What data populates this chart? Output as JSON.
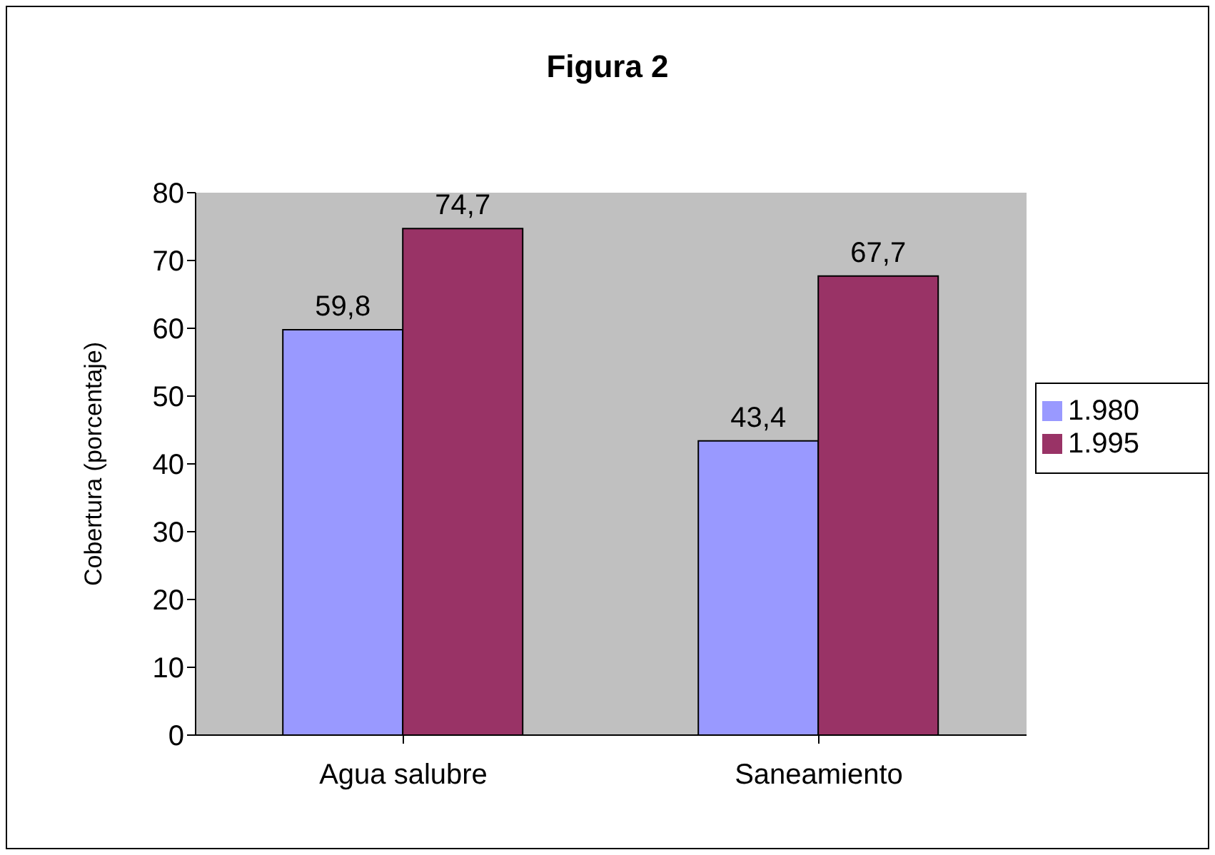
{
  "chart_data": {
    "type": "bar",
    "title": "Figura 2",
    "ylabel": "Cobertura (porcentaje)",
    "categories": [
      "Agua salubre",
      "Saneamiento"
    ],
    "series": [
      {
        "name": "1.980",
        "color": "#9999ff",
        "values": [
          59.8,
          43.4
        ],
        "value_labels": [
          "59,8",
          "43,4"
        ]
      },
      {
        "name": "1.995",
        "color": "#993366",
        "values": [
          74.7,
          67.7
        ],
        "value_labels": [
          "74,7",
          "67,7"
        ]
      }
    ],
    "ylim": [
      0,
      80
    ],
    "yticks": [
      0,
      10,
      20,
      30,
      40,
      50,
      60,
      70,
      80
    ],
    "grid": false,
    "legend": "right"
  }
}
